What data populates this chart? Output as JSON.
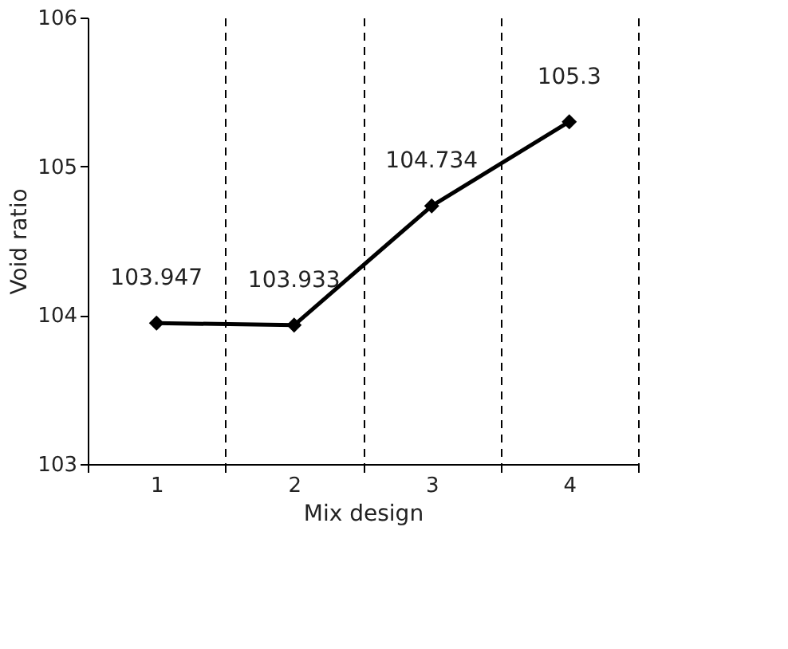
{
  "chart_data": {
    "type": "line",
    "xlabel": "Mix design",
    "ylabel": "Void ratio",
    "categories": [
      "1",
      "2",
      "3",
      "4"
    ],
    "series": [
      {
        "color": "#000000",
        "values": [
          103.947,
          103.933,
          104.734,
          105.3
        ]
      }
    ],
    "ylim": [
      103,
      106
    ],
    "yticks": [
      103,
      104,
      105,
      106
    ],
    "grid": "x",
    "marker": "diamond",
    "line_style": "solid",
    "data_labels": true
  }
}
